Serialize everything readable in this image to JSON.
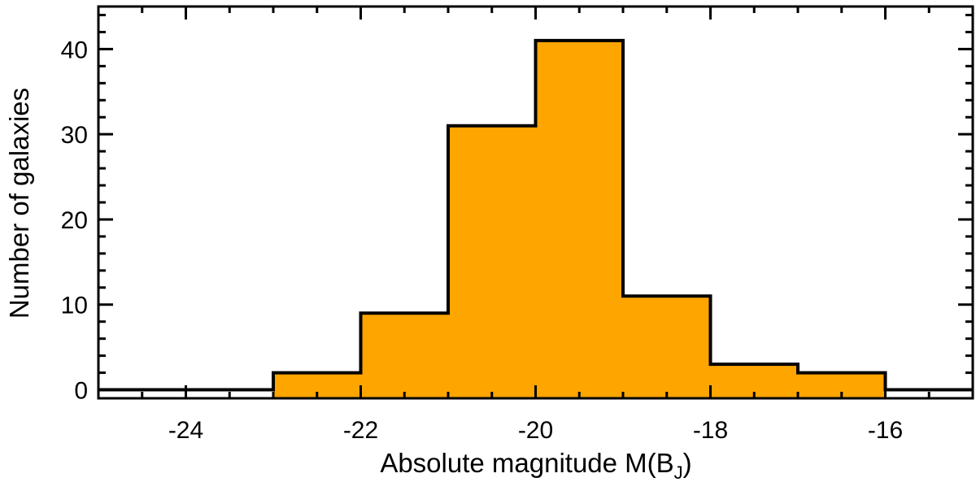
{
  "chart_data": {
    "type": "histogram",
    "title": "",
    "xlabel": "Absolute magnitude M(B",
    "xlabel_sub": "J",
    "xlabel_close": ")",
    "ylabel": "Number of galaxies",
    "xlim": [
      -25,
      -15
    ],
    "ylim": [
      -1,
      45
    ],
    "grid": false,
    "legend": "none",
    "fill_color": "#FFA500",
    "line_color": "#000000",
    "bins": [
      {
        "x0": -25,
        "x1": -24,
        "count": 0
      },
      {
        "x0": -24,
        "x1": -23,
        "count": 0
      },
      {
        "x0": -23,
        "x1": -22,
        "count": 2
      },
      {
        "x0": -22,
        "x1": -21,
        "count": 9
      },
      {
        "x0": -21,
        "x1": -20,
        "count": 31
      },
      {
        "x0": -20,
        "x1": -19,
        "count": 41
      },
      {
        "x0": -19,
        "x1": -18,
        "count": 11
      },
      {
        "x0": -18,
        "x1": -17,
        "count": 3
      },
      {
        "x0": -17,
        "x1": -16,
        "count": 2
      },
      {
        "x0": -16,
        "x1": -15,
        "count": 0
      }
    ],
    "x_major_ticks": [
      -24,
      -22,
      -20,
      -18,
      -16
    ],
    "x_tick_labels": [
      "-24",
      "-22",
      "-20",
      "-18",
      "-16"
    ],
    "x_minor_step": 0.5,
    "y_major_ticks": [
      0,
      10,
      20,
      30,
      40
    ],
    "y_tick_labels": [
      "0",
      "10",
      "20",
      "30",
      "40"
    ],
    "y_minor_step": 2
  }
}
